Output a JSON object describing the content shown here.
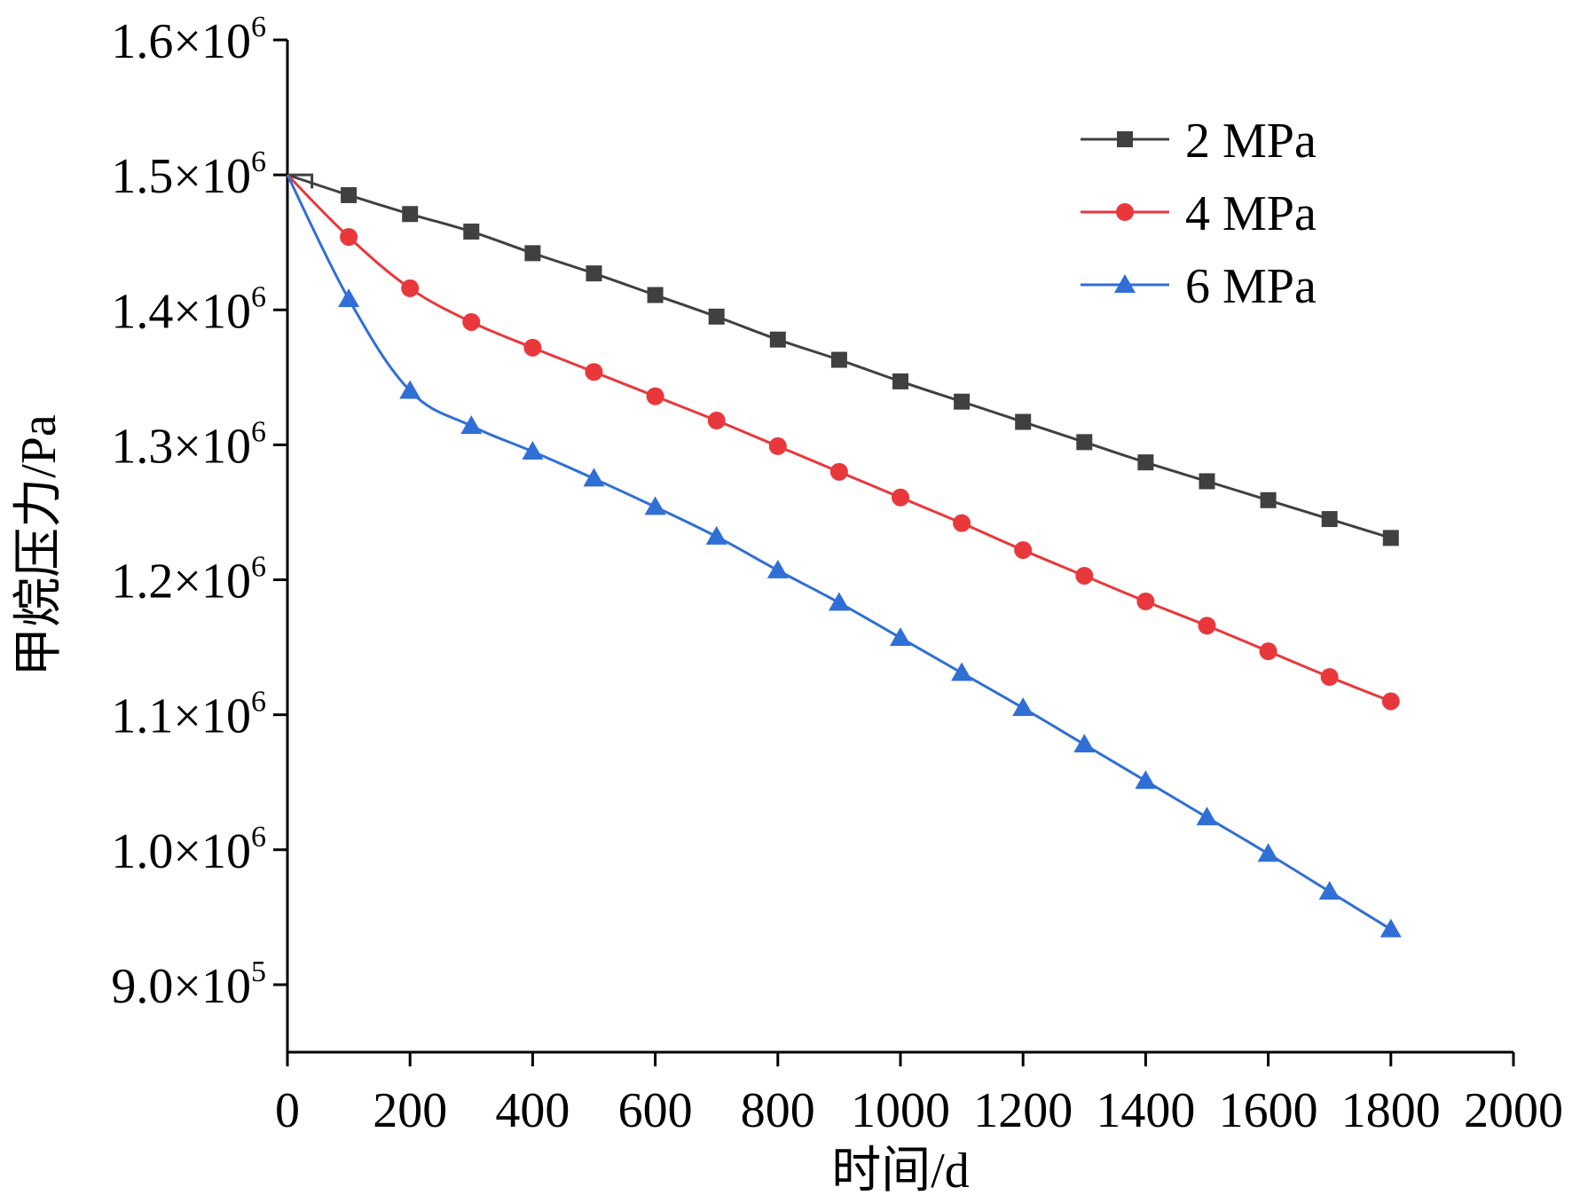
{
  "chart_data": {
    "type": "line",
    "title": "",
    "xlabel": "时间/d",
    "ylabel": "甲烷压力/Pa",
    "xlim": [
      0,
      2000
    ],
    "ylim": [
      850000,
      1600000
    ],
    "x_ticks": [
      0,
      200,
      400,
      600,
      800,
      1000,
      1200,
      1400,
      1600,
      1800,
      2000
    ],
    "x_tick_labels": [
      "0",
      "200",
      "400",
      "600",
      "800",
      "1000",
      "1200",
      "1400",
      "1600",
      "1800",
      "2000"
    ],
    "y_ticks": [
      {
        "value": 900000,
        "mantissa": "9.0×10",
        "exp": "5"
      },
      {
        "value": 1000000,
        "mantissa": "1.0×10",
        "exp": "6"
      },
      {
        "value": 1100000,
        "mantissa": "1.1×10",
        "exp": "6"
      },
      {
        "value": 1200000,
        "mantissa": "1.2×10",
        "exp": "6"
      },
      {
        "value": 1300000,
        "mantissa": "1.3×10",
        "exp": "6"
      },
      {
        "value": 1400000,
        "mantissa": "1.4×10",
        "exp": "6"
      },
      {
        "value": 1500000,
        "mantissa": "1.5×10",
        "exp": "6"
      },
      {
        "value": 1600000,
        "mantissa": "1.6×10",
        "exp": "6"
      }
    ],
    "grid": false,
    "legend_position": "top-right",
    "series": [
      {
        "name": "2 MPa",
        "color": "#404040",
        "marker": "square",
        "x": [
          0,
          100,
          200,
          300,
          400,
          500,
          600,
          700,
          800,
          900,
          1000,
          1100,
          1200,
          1300,
          1400,
          1500,
          1600,
          1700,
          1800
        ],
        "values": [
          1500000,
          1485000,
          1471000,
          1458000,
          1442000,
          1427000,
          1411000,
          1395000,
          1378000,
          1363000,
          1347000,
          1332000,
          1317000,
          1302000,
          1287000,
          1273000,
          1259000,
          1245000,
          1231000
        ],
        "step_start": [
          [
            0,
            1500000
          ],
          [
            40,
            1500000
          ],
          [
            40,
            1490000
          ]
        ]
      },
      {
        "name": "4 MPa",
        "color": "#e8383b",
        "marker": "circle",
        "x": [
          0,
          100,
          200,
          300,
          400,
          500,
          600,
          700,
          800,
          900,
          1000,
          1100,
          1200,
          1300,
          1400,
          1500,
          1600,
          1700,
          1800
        ],
        "values": [
          1500000,
          1454000,
          1416000,
          1391000,
          1372000,
          1354000,
          1336000,
          1318000,
          1299000,
          1280000,
          1261000,
          1242000,
          1222000,
          1203000,
          1184000,
          1166000,
          1147000,
          1128000,
          1110000
        ]
      },
      {
        "name": "6 MPa",
        "color": "#2f6fd6",
        "marker": "triangle",
        "x": [
          0,
          100,
          200,
          300,
          400,
          500,
          600,
          700,
          800,
          900,
          1000,
          1100,
          1200,
          1300,
          1400,
          1500,
          1600,
          1700,
          1800
        ],
        "values": [
          1500000,
          1408000,
          1340000,
          1314000,
          1295000,
          1275000,
          1254000,
          1232000,
          1207000,
          1183000,
          1157000,
          1131000,
          1105000,
          1078000,
          1051000,
          1024000,
          997000,
          969000,
          941000
        ]
      }
    ]
  }
}
